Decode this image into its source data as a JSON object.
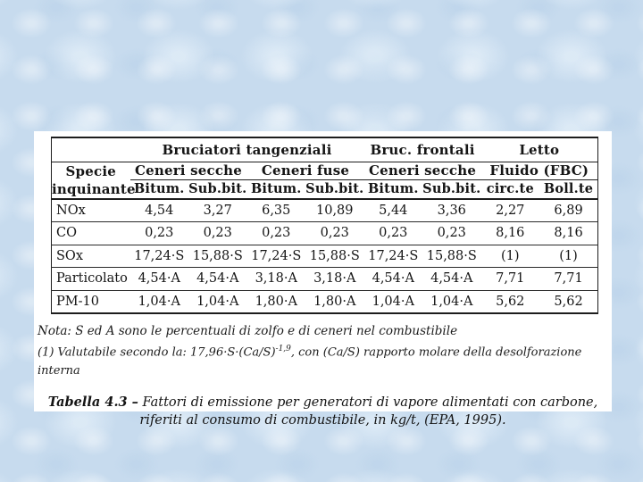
{
  "slide": {
    "table": {
      "corner": {
        "line1": "Specie",
        "line2": "inquinante"
      },
      "groups": {
        "g1": "Bruciatori tangenziali",
        "g2": "Bruc. frontali",
        "g3": "Letto"
      },
      "subgroups": {
        "s1": "Ceneri secche",
        "s2": "Ceneri fuse",
        "s3": "Ceneri secche",
        "s4": "Fluido (FBC)"
      },
      "columns": [
        "Bitum.",
        "Sub.bit.",
        "Bitum.",
        "Sub.bit.",
        "Bitum.",
        "Sub.bit.",
        "circ.te",
        "Boll.te"
      ],
      "rows": [
        {
          "label": "NOx",
          "values": [
            "4,54",
            "3,27",
            "6,35",
            "10,89",
            "5,44",
            "3,36",
            "2,27",
            "6,89"
          ]
        },
        {
          "label": "CO",
          "values": [
            "0,23",
            "0,23",
            "0,23",
            "0,23",
            "0,23",
            "0,23",
            "8,16",
            "8,16"
          ]
        },
        {
          "label": "SOx",
          "values": [
            "17,24·S",
            "15,88·S",
            "17,24·S",
            "15,88·S",
            "17,24·S",
            "15,88·S",
            "(1)",
            "(1)"
          ]
        },
        {
          "label": "Particolato",
          "values": [
            "4,54·A",
            "4,54·A",
            "3,18·A",
            "3,18·A",
            "4,54·A",
            "4,54·A",
            "7,71",
            "7,71"
          ]
        },
        {
          "label": "PM-10",
          "values": [
            "1,04·A",
            "1,04·A",
            "1,80·A",
            "1,80·A",
            "1,04·A",
            "1,04·A",
            "5,62",
            "5,62"
          ]
        }
      ]
    },
    "notes": {
      "line1": "Nota: S ed A sono le percentuali di zolfo e di ceneri nel combustibile",
      "line2_prefix": "(1)  Valutabile secondo la: 17,96·S·(Ca/S)",
      "line2_sup": "-1,9",
      "line2_suffix": ", con (Ca/S) rapporto molare della desolforazione interna"
    },
    "caption": {
      "label": "Tabella 4.3 –",
      "line1_rest": " Fattori di emissione per generatori di vapore alimentati con carbone,",
      "line2": "riferiti al consumo di combustibile, in kg/t, (EPA, 1995)."
    },
    "colors": {
      "background_blue": "#c7dbee",
      "slide_white": "#ffffff",
      "text_black": "#151515"
    }
  }
}
